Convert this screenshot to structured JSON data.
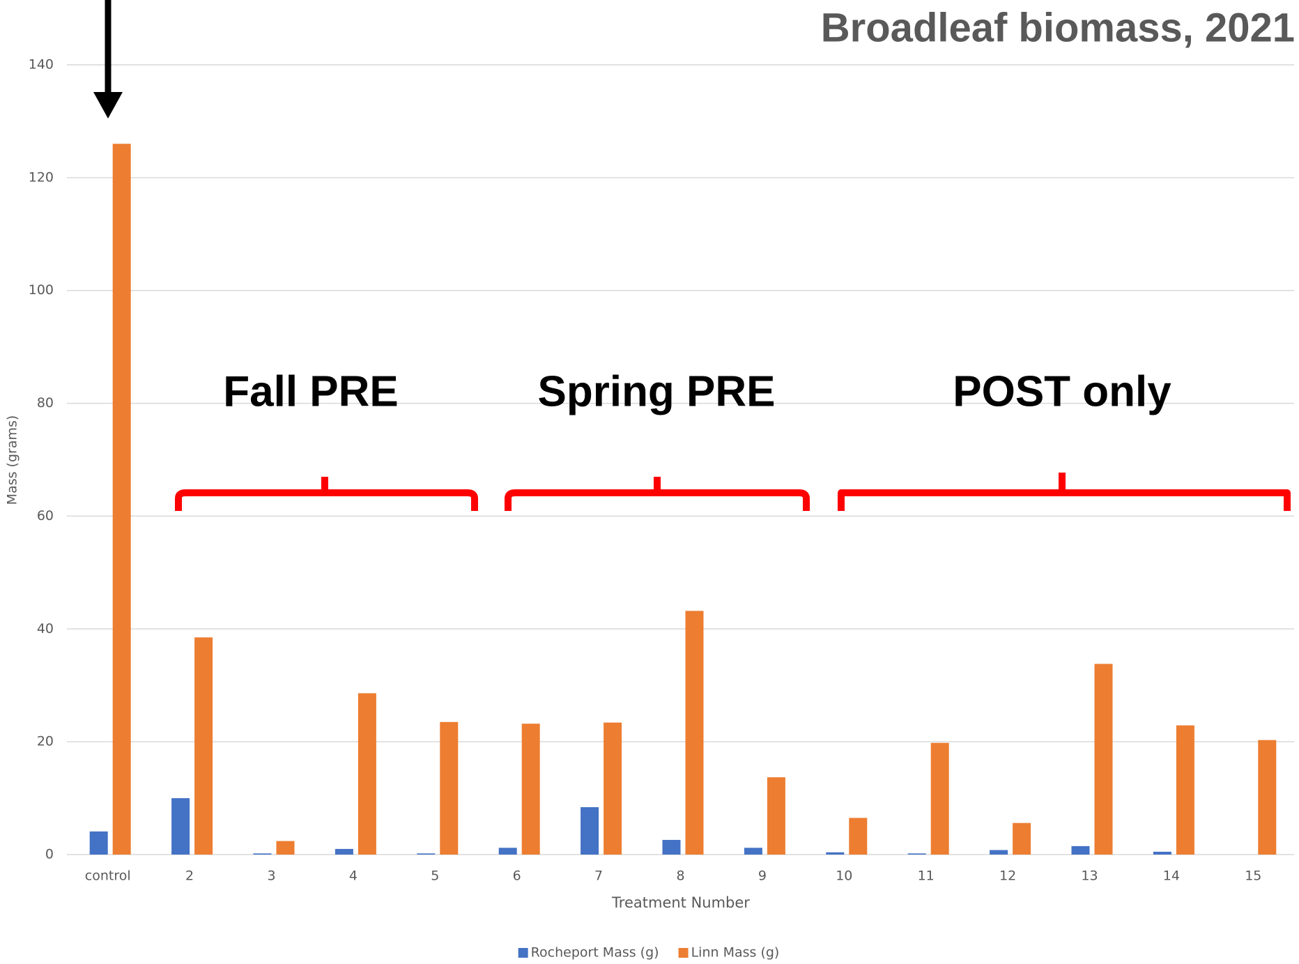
{
  "chart_data": {
    "type": "bar",
    "title": "Broadleaf biomass, 2021",
    "x_label": "Treatment Number",
    "y_label": "Mass (grams)",
    "annotations": [
      "Fall PRE",
      "Spring PRE",
      "POST only"
    ],
    "categories": [
      "control",
      "2",
      "3",
      "4",
      "5",
      "6",
      "7",
      "8",
      "9",
      "10",
      "11",
      "12",
      "13",
      "14",
      "15"
    ],
    "series": [
      {
        "name": "Rocheport Mass (g)",
        "color": "#4472c4",
        "values": [
          4.1,
          10.0,
          0.2,
          1.0,
          0.2,
          1.2,
          8.4,
          2.6,
          1.2,
          0.4,
          0.2,
          0.8,
          1.5,
          0.5,
          0
        ]
      },
      {
        "name": "Linn Mass (g)",
        "color": "#ed7d31",
        "values": [
          126,
          38.5,
          2.4,
          28.6,
          23.5,
          23.2,
          23.4,
          43.2,
          13.7,
          6.5,
          19.8,
          5.6,
          33.8,
          22.9,
          20.3
        ]
      }
    ],
    "ylim": [
      0,
      140
    ],
    "yticks": [
      0,
      20,
      40,
      60,
      80,
      100,
      120,
      140
    ],
    "grid": true,
    "legend": "bottom"
  }
}
